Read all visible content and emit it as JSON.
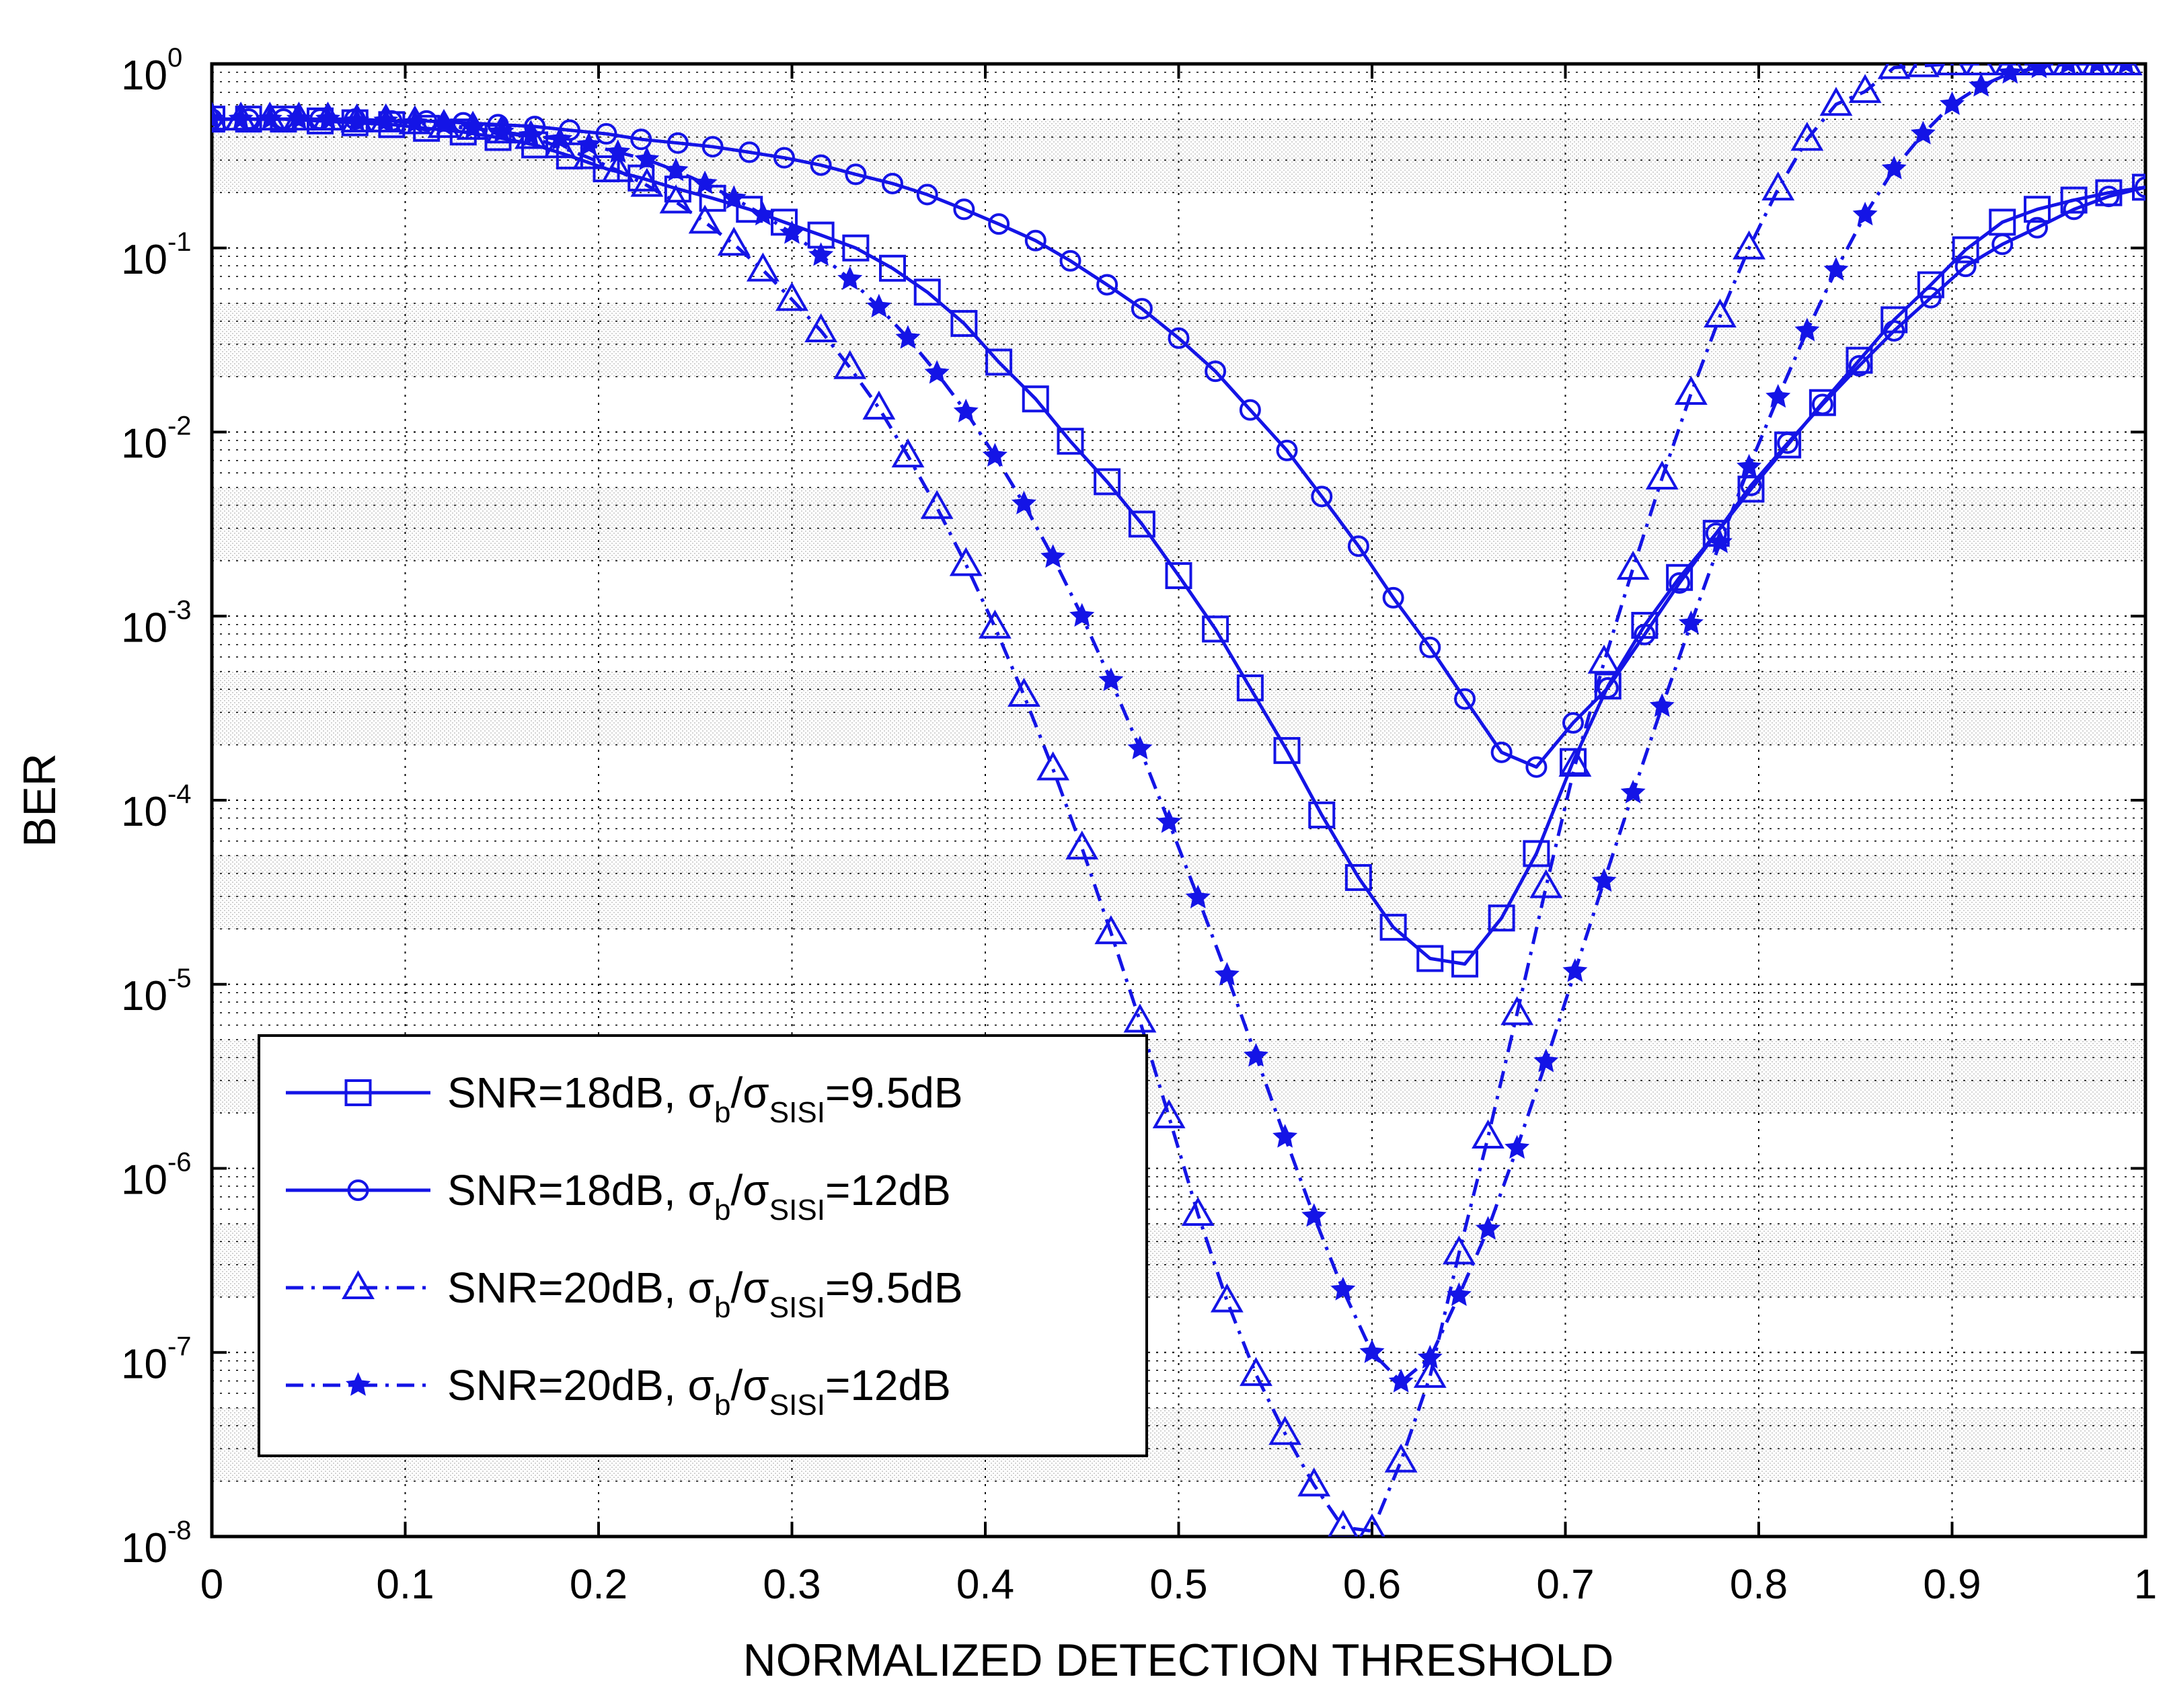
{
  "chart_data": {
    "type": "line",
    "title": "",
    "xlabel": "NORMALIZED DETECTION THRESHOLD",
    "ylabel": "BER",
    "xlim": [
      0,
      1
    ],
    "ylim_log10": [
      -8,
      0
    ],
    "yscale": "log",
    "grid": true,
    "legend_position": "bottom-left",
    "x_ticks": [
      "0",
      "0.1",
      "0.2",
      "0.3",
      "0.4",
      "0.5",
      "0.6",
      "0.7",
      "0.8",
      "0.9",
      "1"
    ],
    "y_ticks": [
      {
        "base": "10",
        "exp": "0"
      },
      {
        "base": "10",
        "exp": "-1"
      },
      {
        "base": "10",
        "exp": "-2"
      },
      {
        "base": "10",
        "exp": "-3"
      },
      {
        "base": "10",
        "exp": "-4"
      },
      {
        "base": "10",
        "exp": "-5"
      },
      {
        "base": "10",
        "exp": "-6"
      },
      {
        "base": "10",
        "exp": "-7"
      },
      {
        "base": "10",
        "exp": "-8"
      }
    ],
    "color": "#1414e6",
    "series": [
      {
        "name": "SNR=18dB, σb/σSISI=9.5dB",
        "legend": {
          "snr": "SNR=18dB, ",
          "sigma_b": "σ",
          "b": "b",
          "slash": "/σ",
          "sisi": "SISI",
          "value": "=9.5dB"
        },
        "marker": "square",
        "line": "solid",
        "x": [
          0.0,
          0.019,
          0.037,
          0.056,
          0.074,
          0.093,
          0.111,
          0.13,
          0.148,
          0.167,
          0.185,
          0.204,
          0.222,
          0.241,
          0.259,
          0.278,
          0.296,
          0.315,
          0.333,
          0.352,
          0.37,
          0.389,
          0.407,
          0.426,
          0.444,
          0.463,
          0.481,
          0.5,
          0.519,
          0.537,
          0.556,
          0.574,
          0.593,
          0.611,
          0.63,
          0.648,
          0.667,
          0.685,
          0.704,
          0.722,
          0.741,
          0.759,
          0.778,
          0.796,
          0.815,
          0.833,
          0.852,
          0.87,
          0.889,
          0.907,
          0.926,
          0.944,
          0.963,
          0.981,
          1.0
        ],
        "y_log10": [
          -0.3,
          -0.3,
          -0.3,
          -0.31,
          -0.32,
          -0.33,
          -0.35,
          -0.37,
          -0.4,
          -0.44,
          -0.5,
          -0.57,
          -0.62,
          -0.68,
          -0.73,
          -0.79,
          -0.86,
          -0.93,
          -1.0,
          -1.11,
          -1.24,
          -1.41,
          -1.62,
          -1.82,
          -2.05,
          -2.27,
          -2.5,
          -2.78,
          -3.07,
          -3.39,
          -3.73,
          -4.08,
          -4.42,
          -4.69,
          -4.86,
          -4.89,
          -4.64,
          -4.29,
          -3.79,
          -3.38,
          -3.05,
          -2.79,
          -2.55,
          -2.31,
          -2.07,
          -1.84,
          -1.61,
          -1.39,
          -1.2,
          -1.01,
          -0.86,
          -0.79,
          -0.74,
          -0.7,
          -0.67
        ]
      },
      {
        "name": "SNR=18dB, σb/σSISI=12dB",
        "legend": {
          "snr": "SNR=18dB, ",
          "sigma_b": "σ",
          "b": "b",
          "slash": "/σ",
          "sisi": "SISI",
          "value": "=12dB"
        },
        "marker": "circle",
        "line": "solid",
        "x": [
          0.0,
          0.019,
          0.037,
          0.056,
          0.074,
          0.093,
          0.111,
          0.13,
          0.148,
          0.167,
          0.185,
          0.204,
          0.222,
          0.241,
          0.259,
          0.278,
          0.296,
          0.315,
          0.333,
          0.352,
          0.37,
          0.389,
          0.407,
          0.426,
          0.444,
          0.463,
          0.481,
          0.5,
          0.519,
          0.537,
          0.556,
          0.574,
          0.593,
          0.611,
          0.63,
          0.648,
          0.667,
          0.685,
          0.704,
          0.722,
          0.741,
          0.759,
          0.778,
          0.796,
          0.815,
          0.833,
          0.852,
          0.87,
          0.889,
          0.907,
          0.926,
          0.944,
          0.963,
          0.981,
          1.0
        ],
        "y_log10": [
          -0.3,
          -0.3,
          -0.3,
          -0.3,
          -0.3,
          -0.31,
          -0.31,
          -0.32,
          -0.33,
          -0.34,
          -0.36,
          -0.38,
          -0.41,
          -0.43,
          -0.45,
          -0.48,
          -0.51,
          -0.55,
          -0.6,
          -0.65,
          -0.71,
          -0.79,
          -0.87,
          -0.96,
          -1.07,
          -1.2,
          -1.33,
          -1.49,
          -1.67,
          -1.88,
          -2.1,
          -2.35,
          -2.62,
          -2.9,
          -3.17,
          -3.45,
          -3.74,
          -3.82,
          -3.58,
          -3.39,
          -3.1,
          -2.82,
          -2.55,
          -2.29,
          -2.06,
          -1.85,
          -1.64,
          -1.45,
          -1.27,
          -1.1,
          -0.98,
          -0.89,
          -0.79,
          -0.72,
          -0.67
        ]
      },
      {
        "name": "SNR=20dB, σb/σSISI=9.5dB",
        "legend": {
          "snr": "SNR=20dB, ",
          "sigma_b": "σ",
          "b": "b",
          "slash": "/σ",
          "sisi": "SISI",
          "value": "=9.5dB"
        },
        "marker": "triangle",
        "line": "dash-dot",
        "x": [
          0.0,
          0.015,
          0.03,
          0.045,
          0.06,
          0.075,
          0.09,
          0.105,
          0.12,
          0.135,
          0.15,
          0.165,
          0.18,
          0.195,
          0.21,
          0.225,
          0.24,
          0.255,
          0.27,
          0.285,
          0.3,
          0.315,
          0.33,
          0.345,
          0.36,
          0.375,
          0.39,
          0.405,
          0.42,
          0.435,
          0.45,
          0.465,
          0.48,
          0.495,
          0.51,
          0.525,
          0.54,
          0.555,
          0.57,
          0.585,
          0.6,
          0.615,
          0.63,
          0.645,
          0.66,
          0.675,
          0.69,
          0.705,
          0.72,
          0.735,
          0.75,
          0.765,
          0.78,
          0.795,
          0.81,
          0.825,
          0.84,
          0.855,
          0.87,
          0.885,
          0.9,
          0.915,
          0.93,
          0.945,
          0.96,
          0.975,
          0.99
        ],
        "y_log10": [
          -0.3,
          -0.3,
          -0.3,
          -0.3,
          -0.3,
          -0.31,
          -0.31,
          -0.32,
          -0.34,
          -0.35,
          -0.37,
          -0.4,
          -0.45,
          -0.51,
          -0.58,
          -0.66,
          -0.75,
          -0.86,
          -0.98,
          -1.12,
          -1.28,
          -1.45,
          -1.65,
          -1.87,
          -2.13,
          -2.41,
          -2.72,
          -3.06,
          -3.43,
          -3.83,
          -4.26,
          -4.72,
          -5.2,
          -5.72,
          -6.25,
          -6.72,
          -7.12,
          -7.44,
          -7.72,
          -7.95,
          -7.97,
          -7.59,
          -7.13,
          -6.46,
          -5.83,
          -5.16,
          -4.47,
          -3.81,
          -3.25,
          -2.74,
          -2.25,
          -1.79,
          -1.37,
          -1.0,
          -0.68,
          -0.41,
          -0.22,
          -0.15,
          -0.02,
          -0.01,
          0.0,
          0.0,
          0.0,
          0.0,
          0.0,
          0.0,
          0.0
        ]
      },
      {
        "name": "SNR=20dB, σb/σSISI=12dB",
        "legend": {
          "snr": "SNR=20dB, ",
          "sigma_b": "σ",
          "b": "b",
          "slash": "/σ",
          "sisi": "SISI",
          "value": "=12dB"
        },
        "marker": "star",
        "line": "dash-dot",
        "x": [
          0.0,
          0.015,
          0.03,
          0.045,
          0.06,
          0.075,
          0.09,
          0.105,
          0.12,
          0.135,
          0.15,
          0.165,
          0.18,
          0.195,
          0.21,
          0.225,
          0.24,
          0.255,
          0.27,
          0.285,
          0.3,
          0.315,
          0.33,
          0.345,
          0.36,
          0.375,
          0.39,
          0.405,
          0.42,
          0.435,
          0.45,
          0.465,
          0.48,
          0.495,
          0.51,
          0.525,
          0.54,
          0.555,
          0.57,
          0.585,
          0.6,
          0.615,
          0.63,
          0.645,
          0.66,
          0.675,
          0.69,
          0.705,
          0.72,
          0.735,
          0.75,
          0.765,
          0.78,
          0.795,
          0.81,
          0.825,
          0.84,
          0.855,
          0.87,
          0.885,
          0.9,
          0.915,
          0.93,
          0.945,
          0.96,
          0.975,
          0.99
        ],
        "y_log10": [
          -0.3,
          -0.3,
          -0.3,
          -0.3,
          -0.3,
          -0.31,
          -0.31,
          -0.32,
          -0.33,
          -0.35,
          -0.37,
          -0.39,
          -0.41,
          -0.44,
          -0.48,
          -0.52,
          -0.58,
          -0.65,
          -0.73,
          -0.82,
          -0.92,
          -1.04,
          -1.17,
          -1.32,
          -1.49,
          -1.68,
          -1.89,
          -2.13,
          -2.39,
          -2.68,
          -3.0,
          -3.35,
          -3.72,
          -4.12,
          -4.53,
          -4.95,
          -5.39,
          -5.83,
          -6.26,
          -6.66,
          -7.0,
          -7.16,
          -7.03,
          -6.69,
          -6.33,
          -5.89,
          -5.42,
          -4.93,
          -4.44,
          -3.96,
          -3.49,
          -3.04,
          -2.6,
          -2.19,
          -1.81,
          -1.45,
          -1.12,
          -0.82,
          -0.57,
          -0.38,
          -0.22,
          -0.12,
          -0.05,
          -0.02,
          0.0,
          0.0,
          0.0
        ]
      }
    ]
  }
}
